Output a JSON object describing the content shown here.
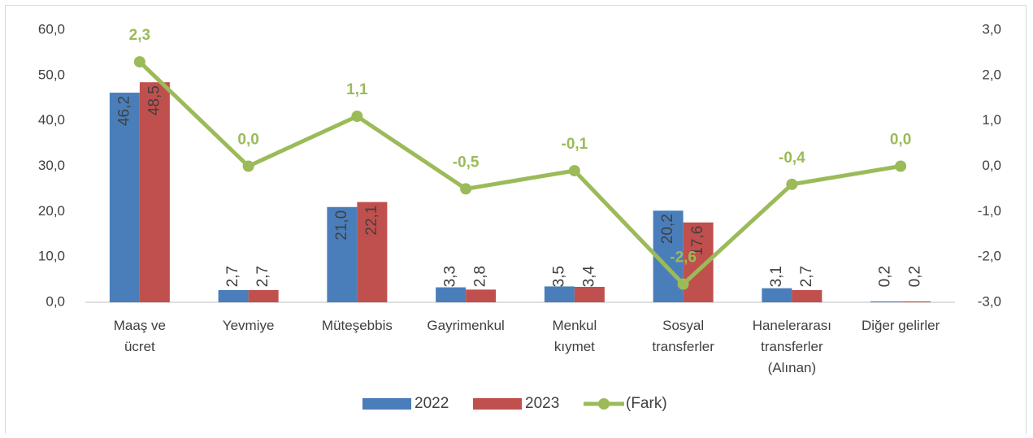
{
  "chart_data": {
    "type": "bar",
    "categories": [
      "Maaş ve\nücret",
      "Yevmiye",
      "Müteşebbis",
      "Gayrimenkul",
      "Menkul\nkıymet",
      "Sosyal\ntransferler",
      "Hanelerarası\ntransferler\n(Alınan)",
      "Diğer gelirler"
    ],
    "series": [
      {
        "name": "2022",
        "color": "#4a7ebb",
        "values": [
          46.2,
          2.7,
          21.0,
          3.3,
          3.5,
          20.2,
          3.1,
          0.2
        ],
        "value_labels": [
          "46,2",
          "2,7",
          "21,0",
          "3,3",
          "3,5",
          "20,2",
          "3,1",
          "0,2"
        ]
      },
      {
        "name": "2023",
        "color": "#c0504d",
        "values": [
          48.5,
          2.7,
          22.1,
          2.8,
          3.4,
          17.6,
          2.7,
          0.2
        ],
        "value_labels": [
          "48,5",
          "2,7",
          "22,1",
          "2,8",
          "3,4",
          "17,6",
          "2,7",
          "0,2"
        ]
      },
      {
        "name": "(Fark)",
        "color": "#9bbb59",
        "type": "line",
        "axis": "y2",
        "values": [
          2.3,
          0.0,
          1.1,
          -0.5,
          -0.1,
          -2.6,
          -0.4,
          0.0
        ],
        "value_labels": [
          "2,3",
          "0,0",
          "1,1",
          "-0,5",
          "-0,1",
          "-2,6",
          "-0,4",
          "0,0"
        ]
      }
    ],
    "ylim": [
      0,
      60
    ],
    "yticks": [
      {
        "value": 0,
        "label": "0,0"
      },
      {
        "value": 10,
        "label": "10,0"
      },
      {
        "value": 20,
        "label": "20,0"
      },
      {
        "value": 30,
        "label": "30,0"
      },
      {
        "value": 40,
        "label": "40,0"
      },
      {
        "value": 50,
        "label": "50,0"
      },
      {
        "value": 60,
        "label": "60,0"
      }
    ],
    "y2lim": [
      -3,
      3
    ],
    "y2ticks": [
      {
        "value": -3,
        "label": "-3,0"
      },
      {
        "value": -2,
        "label": "-2,0"
      },
      {
        "value": -1,
        "label": "-1,0"
      },
      {
        "value": 0,
        "label": "0,0"
      },
      {
        "value": 1,
        "label": "1,0"
      },
      {
        "value": 2,
        "label": "2,0"
      },
      {
        "value": 3,
        "label": "3,0"
      }
    ],
    "legend": "bottom"
  }
}
